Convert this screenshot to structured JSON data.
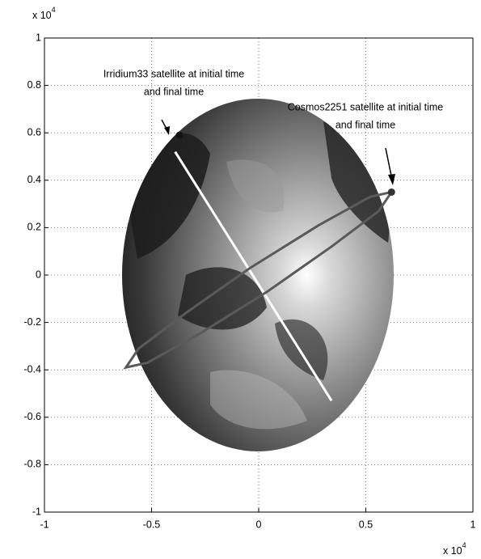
{
  "chart_data": {
    "type": "line",
    "y_multiplier": {
      "base": "x 10",
      "exponent": "4"
    },
    "x_multiplier": {
      "base": "x 10",
      "exponent": "4"
    },
    "xlim": [
      -1,
      1
    ],
    "ylim": [
      -1,
      1
    ],
    "xticks": [
      -1,
      -0.5,
      0,
      0.5,
      1
    ],
    "yticks": [
      -1,
      -0.8,
      -0.6,
      -0.4,
      -0.2,
      0,
      0.2,
      0.4,
      0.6,
      0.8,
      1
    ],
    "grid": true,
    "series": [
      {
        "color": "#ffffff",
        "x": [
          -0.39,
          0.34
        ],
        "y": [
          0.52,
          -0.53
        ]
      },
      {
        "color": "#5a5a5a",
        "x": [
          0.62,
          0.56,
          0.34,
          0.04,
          -0.28,
          -0.52,
          -0.62,
          -0.56,
          -0.34,
          -0.04,
          0.28,
          0.52,
          0.62
        ],
        "y": [
          0.35,
          0.27,
          0.12,
          -0.07,
          -0.25,
          -0.37,
          -0.39,
          -0.31,
          -0.16,
          0.03,
          0.21,
          0.33,
          0.35
        ]
      }
    ],
    "points": [
      {
        "x": -0.37,
        "y": 0.59,
        "color": "#111111"
      },
      {
        "x": 0.62,
        "y": 0.35,
        "color": "#333333"
      }
    ],
    "annotations": [
      {
        "lines": [
          "Irridium33 satellite at initial time",
          "and final time"
        ]
      },
      {
        "lines": [
          "Cosmos2251 satellite at initial time",
          "and final time"
        ]
      }
    ]
  }
}
